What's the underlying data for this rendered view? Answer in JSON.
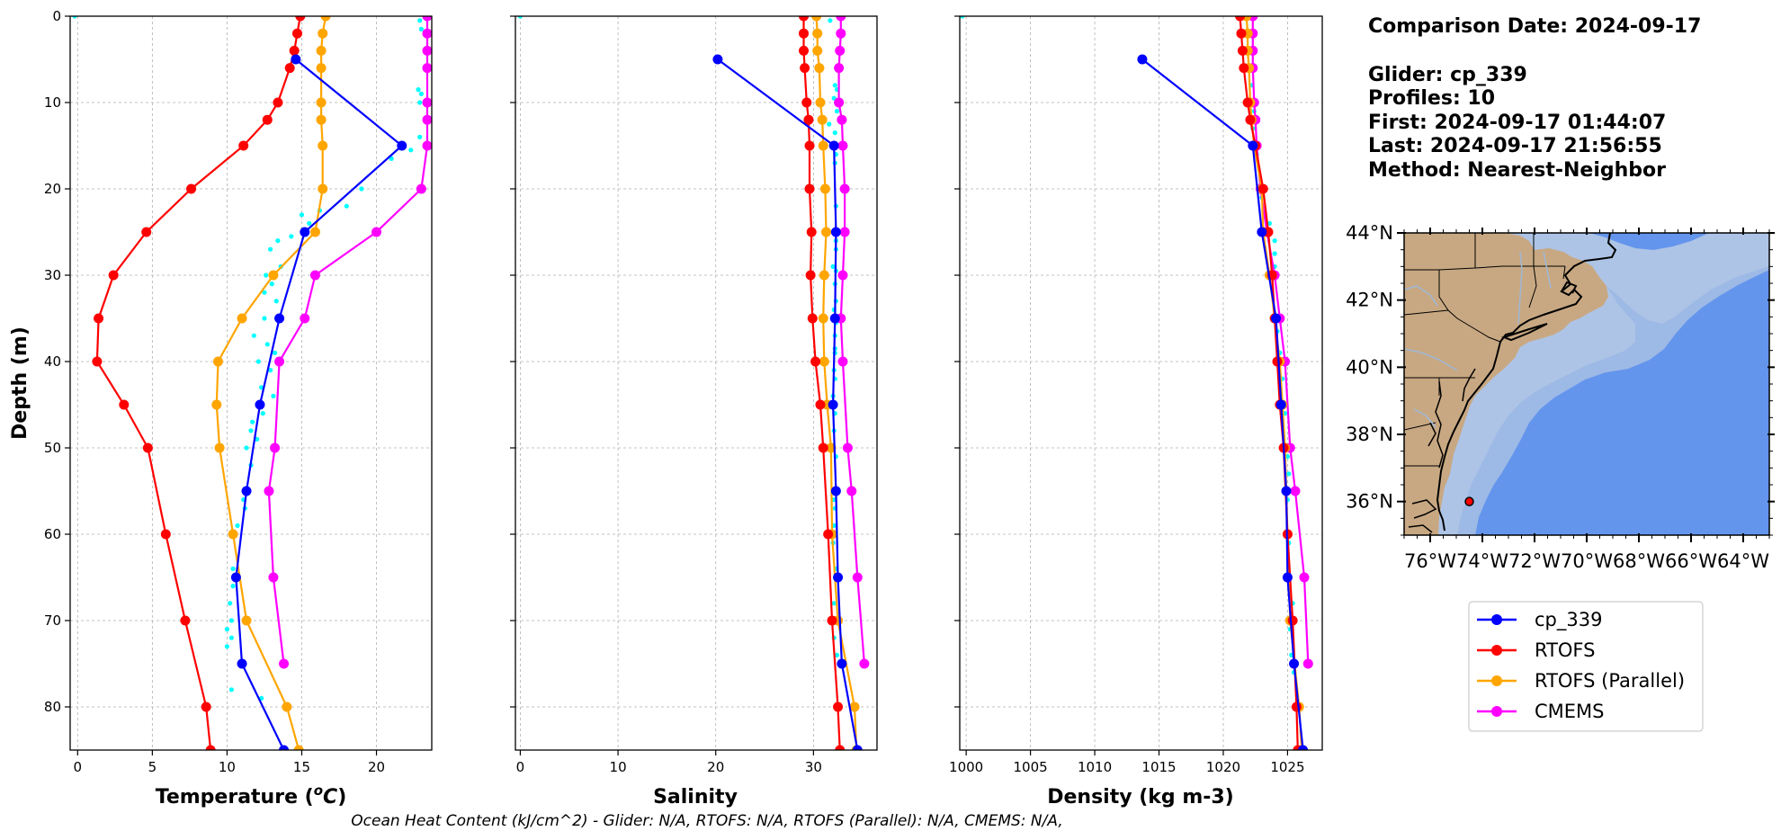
{
  "colors": {
    "glider": "#0000ff",
    "rtofs": "#ff0000",
    "rtofs_parallel": "#ffa500",
    "cmems": "#ff00ff",
    "obs_dots": "#00ffff",
    "land": "#c8a882",
    "shelf": "#adc4e6",
    "ocean": "#6495ed"
  },
  "info": {
    "comparison_date": "Comparison Date: 2024-09-17",
    "glider": "Glider: cp_339",
    "profiles": "Profiles: 10",
    "first": "First: 2024-09-17 01:44:07",
    "last": "Last: 2024-09-17 21:56:55",
    "method": "Method: Nearest-Neighbor"
  },
  "footer": "Ocean Heat Content (kJ/cm^2) - Glider: N/A,  RTOFS: N/A,  RTOFS (Parallel): N/A,  CMEMS: N/A,",
  "ylabel": "Depth (m)",
  "map": {
    "lat_labels": [
      "44°N",
      "42°N",
      "40°N",
      "38°N",
      "36°N"
    ],
    "lat_values": [
      44,
      42,
      40,
      38,
      36
    ],
    "lon_labels": [
      "76°W",
      "74°W",
      "72°W",
      "70°W",
      "68°W",
      "66°W",
      "64°W"
    ],
    "lon_values": [
      -76,
      -74,
      -72,
      -70,
      -68,
      -66,
      -64
    ],
    "extent": [
      -77,
      -63,
      35,
      44
    ],
    "glider_position": {
      "lon": -74.5,
      "lat": 36
    }
  },
  "legend": [
    {
      "label": "cp_339",
      "key": "glider"
    },
    {
      "label": "RTOFS",
      "key": "rtofs"
    },
    {
      "label": "RTOFS (Parallel)",
      "key": "rtofs_parallel"
    },
    {
      "label": "CMEMS",
      "key": "cmems"
    }
  ],
  "chart_data": [
    {
      "type": "line",
      "xlabel": "Temperature (°C)",
      "ylabel": "Depth (m)",
      "xlim": [
        -0.5,
        23.7
      ],
      "ylim": [
        85,
        0
      ],
      "xticks": [
        0,
        5,
        10,
        15,
        20
      ],
      "yticks": [
        0,
        10,
        20,
        30,
        40,
        50,
        60,
        70,
        80
      ],
      "grid": true,
      "depths": [
        0,
        2,
        4,
        6,
        10,
        12,
        15,
        20,
        25,
        30,
        35,
        40,
        45,
        50,
        55,
        60,
        65,
        70,
        75,
        80,
        85
      ],
      "series": [
        {
          "name": "cp_339",
          "key": "glider",
          "x": [
            14.6,
            21.7,
            15.2,
            13.5,
            12.2,
            11.3,
            10.6,
            11.0,
            13.8
          ],
          "y": [
            5,
            15,
            25,
            35,
            45,
            55,
            65,
            75,
            85
          ]
        },
        {
          "name": "RTOFS",
          "key": "rtofs",
          "x": [
            14.9,
            14.7,
            14.5,
            14.2,
            13.4,
            12.7,
            11.1,
            7.6,
            4.6,
            2.4,
            1.4,
            1.3,
            3.1,
            4.7,
            null,
            5.9,
            null,
            7.2,
            null,
            8.6,
            8.9
          ]
        },
        {
          "name": "RTOFS (Parallel)",
          "key": "rtofs_parallel",
          "x": [
            16.6,
            16.4,
            16.3,
            16.3,
            16.3,
            16.3,
            16.4,
            16.4,
            15.9,
            13.1,
            11.0,
            9.4,
            9.3,
            9.5,
            null,
            10.4,
            null,
            11.3,
            null,
            14.0,
            14.8
          ]
        },
        {
          "name": "CMEMS",
          "key": "cmems",
          "x": [
            23.4,
            23.4,
            23.4,
            23.4,
            23.4,
            23.4,
            23.4,
            23.0,
            20.0,
            15.9,
            15.2,
            13.5,
            null,
            13.2,
            12.8,
            null,
            13.1,
            null,
            13.8,
            null,
            null
          ]
        }
      ],
      "cmems_points": [
        [
          23.4,
          0
        ],
        [
          23.4,
          1
        ],
        [
          23.4,
          2
        ],
        [
          23.4,
          3
        ],
        [
          23.4,
          4
        ],
        [
          23.4,
          5
        ],
        [
          23.4,
          6
        ],
        [
          23.4,
          7
        ],
        [
          23.4,
          8
        ],
        [
          23.4,
          9
        ],
        [
          23.4,
          10
        ],
        [
          23.4,
          11
        ],
        [
          23.4,
          12
        ],
        [
          23.4,
          13.5
        ],
        [
          23.4,
          16
        ],
        [
          23.0,
          18.5
        ],
        [
          22.5,
          21.5
        ],
        [
          20.0,
          25
        ],
        [
          15.9,
          29.5
        ],
        [
          15.2,
          34.5
        ],
        [
          13.5,
          40.5
        ],
        [
          13.2,
          47
        ],
        [
          12.8,
          56
        ],
        [
          13.1,
          65.5
        ],
        [
          13.8,
          78
        ]
      ],
      "obs_points": [
        [
          -0.2,
          0
        ],
        [
          22.9,
          0.5
        ],
        [
          23.0,
          1.5
        ],
        [
          22.8,
          8.5
        ],
        [
          23.0,
          9
        ],
        [
          22.9,
          10
        ],
        [
          22.9,
          14
        ],
        [
          22.3,
          15.5
        ],
        [
          21.0,
          16.5
        ],
        [
          19.0,
          20
        ],
        [
          18.0,
          22
        ],
        [
          16.2,
          22.5
        ],
        [
          15.0,
          23
        ],
        [
          15.5,
          24
        ],
        [
          14.3,
          25.5
        ],
        [
          13.4,
          26
        ],
        [
          12.9,
          27
        ],
        [
          13.6,
          29
        ],
        [
          12.6,
          30
        ],
        [
          13.0,
          31
        ],
        [
          12.5,
          32
        ],
        [
          13.3,
          33
        ],
        [
          12.5,
          35
        ],
        [
          11.8,
          37
        ],
        [
          12.7,
          38
        ],
        [
          13.2,
          39
        ],
        [
          12.1,
          40
        ],
        [
          12.9,
          41
        ],
        [
          12.3,
          43
        ],
        [
          13.1,
          44
        ],
        [
          12.4,
          46
        ],
        [
          11.7,
          47
        ],
        [
          11.6,
          48
        ],
        [
          12.0,
          49
        ],
        [
          11.3,
          50
        ],
        [
          11.6,
          52
        ],
        [
          11.1,
          56
        ],
        [
          11.2,
          57
        ],
        [
          10.7,
          59
        ],
        [
          10.4,
          64
        ],
        [
          10.4,
          66
        ],
        [
          10.2,
          68
        ],
        [
          10.3,
          70
        ],
        [
          10.0,
          71
        ],
        [
          10.3,
          72
        ],
        [
          10.0,
          73
        ],
        [
          10.3,
          78
        ],
        [
          12.3,
          79
        ]
      ]
    },
    {
      "type": "line",
      "xlabel": "Salinity",
      "xlim": [
        -0.5,
        36.5
      ],
      "ylim": [
        85,
        0
      ],
      "xticks": [
        0,
        10,
        20,
        30
      ],
      "grid": true,
      "series": [
        {
          "name": "cp_339",
          "key": "glider",
          "x": [
            20.2,
            32.1,
            32.3,
            32.2,
            32.0,
            32.3,
            32.5,
            32.9,
            34.5
          ],
          "y": [
            5,
            15,
            25,
            35,
            45,
            55,
            65,
            75,
            85
          ]
        },
        {
          "name": "RTOFS",
          "key": "rtofs",
          "x": [
            29.0,
            29.0,
            29.0,
            29.1,
            29.3,
            29.5,
            29.6,
            29.6,
            29.8,
            29.7,
            29.9,
            30.2,
            30.7,
            31.0,
            null,
            31.5,
            null,
            31.9,
            null,
            32.5,
            32.7
          ]
        },
        {
          "name": "RTOFS (Parallel)",
          "key": "rtofs_parallel",
          "x": [
            30.3,
            30.4,
            30.4,
            30.6,
            30.7,
            30.9,
            31.0,
            31.2,
            31.3,
            31.1,
            31.0,
            31.1,
            31.4,
            31.8,
            null,
            31.9,
            null,
            32.5,
            null,
            34.2,
            34.4
          ]
        },
        {
          "name": "CMEMS",
          "key": "cmems",
          "x": [
            32.8,
            32.8,
            32.7,
            32.6,
            32.6,
            32.9,
            33.0,
            33.2,
            33.2,
            33.0,
            32.8,
            33.0,
            null,
            33.5,
            33.9,
            null,
            34.5,
            null,
            35.2,
            null,
            null
          ]
        }
      ],
      "obs_points": [
        [
          0,
          0
        ],
        [
          31.7,
          0.5
        ],
        [
          32.2,
          8
        ],
        [
          32.4,
          8.5
        ],
        [
          32.1,
          9.5
        ],
        [
          32.4,
          11
        ],
        [
          31.6,
          12.5
        ],
        [
          32.2,
          13.5
        ],
        [
          31.9,
          15
        ],
        [
          32.3,
          16
        ],
        [
          32.2,
          17
        ],
        [
          32.3,
          22
        ],
        [
          32.3,
          26
        ],
        [
          32.3,
          27
        ],
        [
          32.0,
          29
        ],
        [
          32.3,
          29.5
        ],
        [
          32.2,
          31
        ],
        [
          32.3,
          33
        ],
        [
          32.1,
          34
        ],
        [
          32.3,
          35.5
        ],
        [
          32.2,
          37
        ],
        [
          32.2,
          38.5
        ],
        [
          32.2,
          39
        ],
        [
          32.1,
          41
        ],
        [
          32.2,
          42
        ],
        [
          32.0,
          44
        ],
        [
          32.2,
          46
        ],
        [
          32.1,
          48
        ],
        [
          32.3,
          51
        ],
        [
          32.1,
          56
        ],
        [
          32.2,
          57
        ],
        [
          32.1,
          59
        ],
        [
          32.0,
          61
        ],
        [
          32.3,
          64
        ],
        [
          32.1,
          68
        ],
        [
          32.2,
          70
        ],
        [
          32.1,
          72
        ],
        [
          32.4,
          74
        ]
      ]
    },
    {
      "type": "line",
      "xlabel": "Density (kg m-3)",
      "xlim": [
        999.5,
        1027.7
      ],
      "ylim": [
        85,
        0
      ],
      "xticks": [
        1000,
        1005,
        1010,
        1015,
        1020,
        1025
      ],
      "grid": true,
      "series": [
        {
          "name": "cp_339",
          "key": "glider",
          "x": [
            1013.7,
            1022.3,
            1023.0,
            1024.1,
            1024.5,
            1024.9,
            1025.0,
            1025.5,
            1026.2
          ],
          "y": [
            5,
            15,
            25,
            35,
            45,
            55,
            65,
            75,
            85
          ]
        },
        {
          "name": "RTOFS",
          "key": "rtofs",
          "x": [
            1021.3,
            1021.4,
            1021.5,
            1021.6,
            1021.9,
            1022.1,
            1022.5,
            1023.1,
            1023.5,
            1023.8,
            1024.0,
            1024.2,
            1024.4,
            1024.7,
            null,
            1025.0,
            null,
            1025.4,
            null,
            1025.7,
            1025.8
          ]
        },
        {
          "name": "RTOFS (Parallel)",
          "key": "rtofs_parallel",
          "x": [
            1021.8,
            1021.9,
            1021.9,
            1022.0,
            1022.1,
            1022.2,
            1022.4,
            1023.0,
            1023.1,
            1023.6,
            1024.0,
            1024.4,
            1024.6,
            1024.8,
            null,
            1025.0,
            null,
            1025.2,
            null,
            1025.9,
            1026.1
          ]
        },
        {
          "name": "CMEMS",
          "key": "cmems",
          "x": [
            1022.3,
            1022.3,
            1022.3,
            1022.3,
            1022.4,
            1022.5,
            1022.6,
            1022.9,
            1023.4,
            1024.0,
            1024.4,
            1024.8,
            null,
            1025.2,
            1025.6,
            null,
            1026.3,
            null,
            1026.6,
            null,
            null
          ]
        }
      ],
      "obs_points": [
        [
          999.7,
          0
        ],
        [
          1022.2,
          8
        ],
        [
          1022.0,
          10
        ],
        [
          1022.4,
          11
        ],
        [
          1022.3,
          13
        ],
        [
          1022.6,
          16
        ],
        [
          1023.0,
          21
        ],
        [
          1023.6,
          24
        ],
        [
          1024.0,
          26
        ],
        [
          1024.0,
          27.5
        ],
        [
          1024.0,
          29
        ],
        [
          1023.8,
          30
        ],
        [
          1024.3,
          35
        ],
        [
          1024.2,
          36.5
        ],
        [
          1024.4,
          39
        ],
        [
          1024.6,
          42
        ],
        [
          1024.8,
          46
        ],
        [
          1025.0,
          51
        ],
        [
          1025.1,
          53
        ],
        [
          1025.0,
          56
        ],
        [
          1025.1,
          61
        ],
        [
          1025.4,
          68
        ],
        [
          1025.2,
          71
        ],
        [
          1025.3,
          74
        ],
        [
          1025.5,
          76
        ],
        [
          1025.6,
          80
        ]
      ]
    }
  ]
}
